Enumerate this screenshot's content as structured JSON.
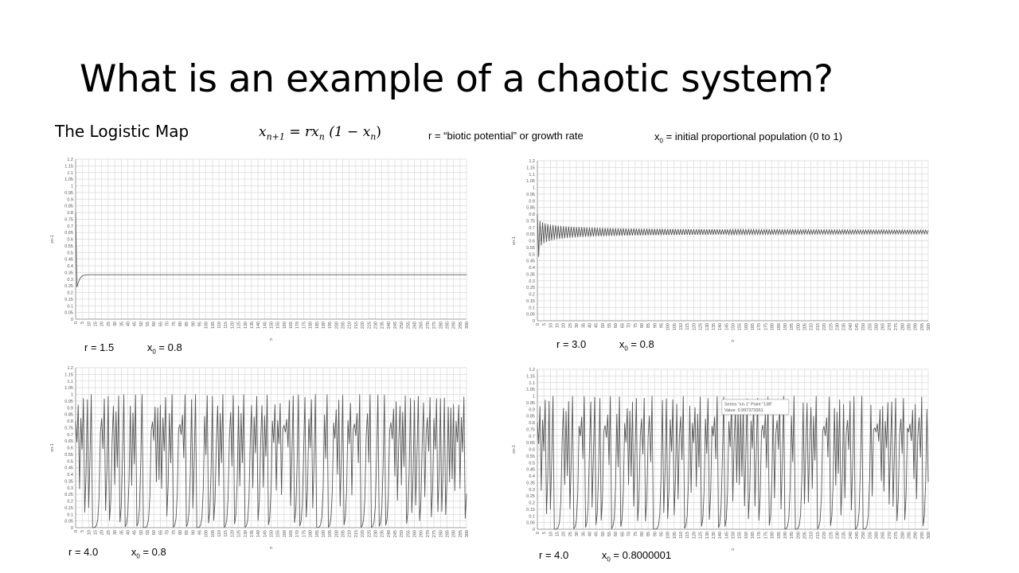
{
  "slide": {
    "title": "What is an example of a chaotic system?",
    "subheading": "The Logistic Map",
    "formula": {
      "lhs": "x",
      "lhs_sub": "n+1",
      "eq": "=",
      "rhs_r": "rx",
      "rhs_sub": "n",
      "paren_open": "(1 − x",
      "paren_sub": "n",
      "paren_close": ")"
    },
    "r_note": "r = “biotic potential” or growth rate",
    "x0_note": {
      "prefix": "x",
      "sub": "0",
      "text": " = initial proportional population (0 to 1)"
    }
  },
  "colors": {
    "line": "#555555",
    "grid": "#d9d9d9",
    "axis": "#888888",
    "background": "#ffffff"
  },
  "chart_data": [
    {
      "type": "line",
      "id": "chart-r15",
      "series": [
        {
          "name": "xn-1",
          "generator": "logistic",
          "r": 1.5,
          "x0": 0.8,
          "n": 300
        }
      ],
      "xlabel": "n",
      "ylabel": "xn-1",
      "xlim": [
        0,
        300
      ],
      "ylim": [
        0,
        1.2
      ],
      "xstep": 5,
      "ystep": 0.05,
      "grid": true,
      "caption": {
        "r_text": "r = 1.5",
        "x0_prefix": "x",
        "x0_sub": "0",
        "x0_text": " = 0.8"
      }
    },
    {
      "type": "line",
      "id": "chart-r30",
      "series": [
        {
          "name": "xn-1",
          "generator": "logistic",
          "r": 3.0,
          "x0": 0.8,
          "n": 300
        }
      ],
      "xlabel": "n",
      "ylabel": "xn-1",
      "xlim": [
        0,
        300
      ],
      "ylim": [
        0,
        1.2
      ],
      "xstep": 5,
      "ystep": 0.05,
      "grid": true,
      "caption": {
        "r_text": "r = 3.0",
        "x0_prefix": "x",
        "x0_sub": "0",
        "x0_text": " = 0.8"
      }
    },
    {
      "type": "line",
      "id": "chart-r40-a",
      "series": [
        {
          "name": "xn-1",
          "generator": "logistic",
          "r": 4.0,
          "x0": 0.8,
          "n": 300
        }
      ],
      "xlabel": "n",
      "ylabel": "xn-1",
      "xlim": [
        0,
        300
      ],
      "ylim": [
        0,
        1.2
      ],
      "xstep": 5,
      "ystep": 0.05,
      "grid": true,
      "caption": {
        "r_text": "r = 4.0",
        "x0_prefix": "x",
        "x0_sub": "0",
        "x0_text": " = 0.8"
      }
    },
    {
      "type": "line",
      "id": "chart-r40-b",
      "series": [
        {
          "name": "xn-1",
          "generator": "logistic",
          "r": 4.0,
          "x0": 0.8000001,
          "n": 300
        }
      ],
      "xlabel": "n",
      "ylabel": "xn-1",
      "xlim": [
        0,
        300
      ],
      "ylim": [
        0,
        1.2
      ],
      "xstep": 5,
      "ystep": 0.05,
      "grid": true,
      "tooltip": {
        "line1": "Series \"xn-1\" Point \"138\"",
        "line2": "Value: 0.997373361",
        "point_n": 138,
        "point_value": 0.997373361
      },
      "caption": {
        "r_text": "r = 4.0",
        "x0_prefix": "x",
        "x0_sub": "0",
        "x0_text": " = 0.8000001"
      }
    }
  ]
}
